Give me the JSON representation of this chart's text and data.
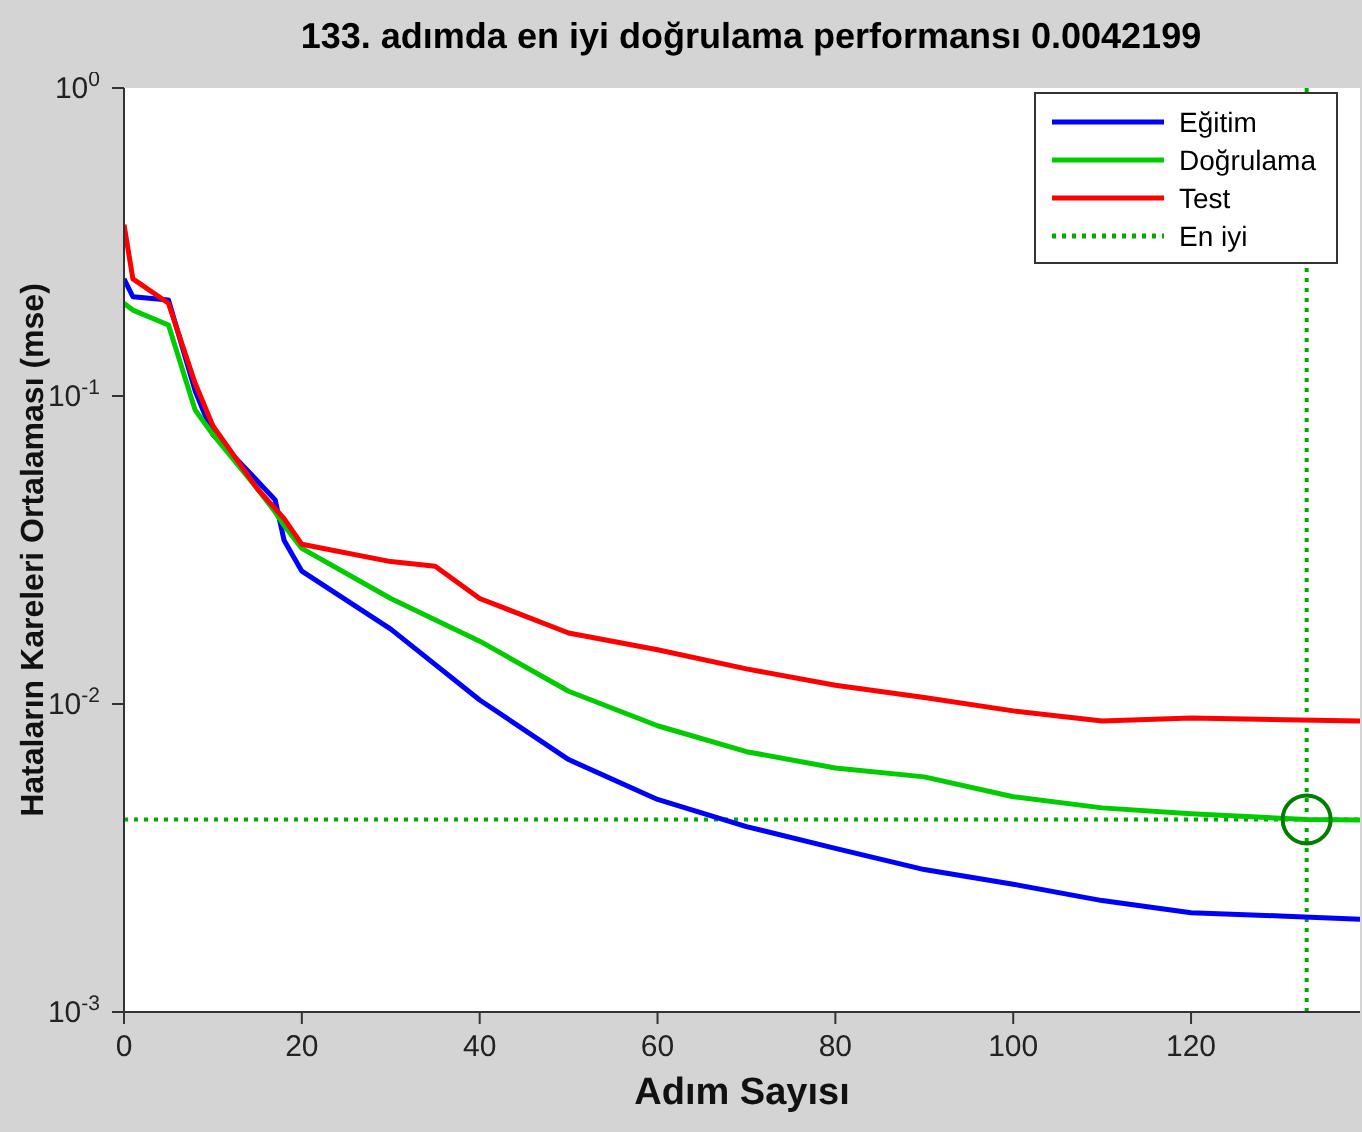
{
  "chart_data": {
    "type": "line",
    "title": "133. adımda en iyi doğrulama performansı 0.0042199",
    "xlabel": "Adım Sayısı",
    "ylabel": "Hataların Kareleri Ortalaması  (mse)",
    "log": "y",
    "xlim": [
      0,
      139
    ],
    "xticks": [
      0,
      20,
      40,
      60,
      80,
      100,
      120
    ],
    "ylim": [
      0.001,
      1
    ],
    "yticks": [
      {
        "value": 0.001,
        "label": "10$^{-3}$"
      },
      {
        "value": 0.01,
        "label": "10$^{-2}$"
      },
      {
        "value": 0.1,
        "label": "10$^{-1}$"
      },
      {
        "value": 1,
        "label": "10$^{0}$"
      }
    ],
    "grid": false,
    "legend": "top right",
    "line_style": "solid",
    "marker": "none",
    "series": [
      {
        "name": "Eğitim",
        "color": "#0000ff",
        "x": [
          0,
          1,
          5,
          8,
          10,
          15,
          17,
          18,
          20,
          30,
          40,
          50,
          60,
          70,
          80,
          90,
          100,
          110,
          120,
          130,
          139
        ],
        "values": [
          0.24,
          0.21,
          0.205,
          0.104,
          0.075,
          0.053,
          0.046,
          0.034,
          0.027,
          0.0175,
          0.0103,
          0.0066,
          0.0049,
          0.004,
          0.0034,
          0.0029,
          0.0026,
          0.0023,
          0.0021,
          0.00205,
          0.002
        ]
      },
      {
        "name": "Doğrulama",
        "color": "#00cc00",
        "x": [
          0,
          1,
          5,
          8,
          10,
          15,
          17,
          18,
          20,
          30,
          40,
          50,
          60,
          70,
          80,
          90,
          100,
          110,
          120,
          133,
          139
        ],
        "values": [
          0.2,
          0.19,
          0.17,
          0.09,
          0.075,
          0.05,
          0.042,
          0.038,
          0.032,
          0.022,
          0.016,
          0.011,
          0.0085,
          0.007,
          0.0062,
          0.0058,
          0.005,
          0.0046,
          0.0044,
          0.0042199,
          0.0042
        ]
      },
      {
        "name": "Test",
        "color": "#ff0000",
        "x": [
          0,
          1,
          5,
          8,
          10,
          15,
          18,
          20,
          30,
          35,
          40,
          50,
          60,
          70,
          80,
          90,
          100,
          110,
          120,
          139
        ],
        "values": [
          0.36,
          0.24,
          0.2,
          0.11,
          0.08,
          0.05,
          0.04,
          0.033,
          0.029,
          0.028,
          0.022,
          0.017,
          0.015,
          0.013,
          0.0115,
          0.0105,
          0.0095,
          0.0088,
          0.009,
          0.0088
        ]
      },
      {
        "type": "scatter",
        "color": "#007f00",
        "marker": "circle",
        "x": [
          133
        ],
        "values": [
          0.0042199
        ]
      }
    ],
    "ref_lines": [
      {
        "axis": "x",
        "value": 133,
        "color": "#00aa00",
        "line_style": "dotted"
      },
      {
        "axis": "y",
        "value": 0.0042199,
        "label": "En iyi",
        "color": "#00aa00",
        "line_style": "dotted"
      }
    ]
  }
}
